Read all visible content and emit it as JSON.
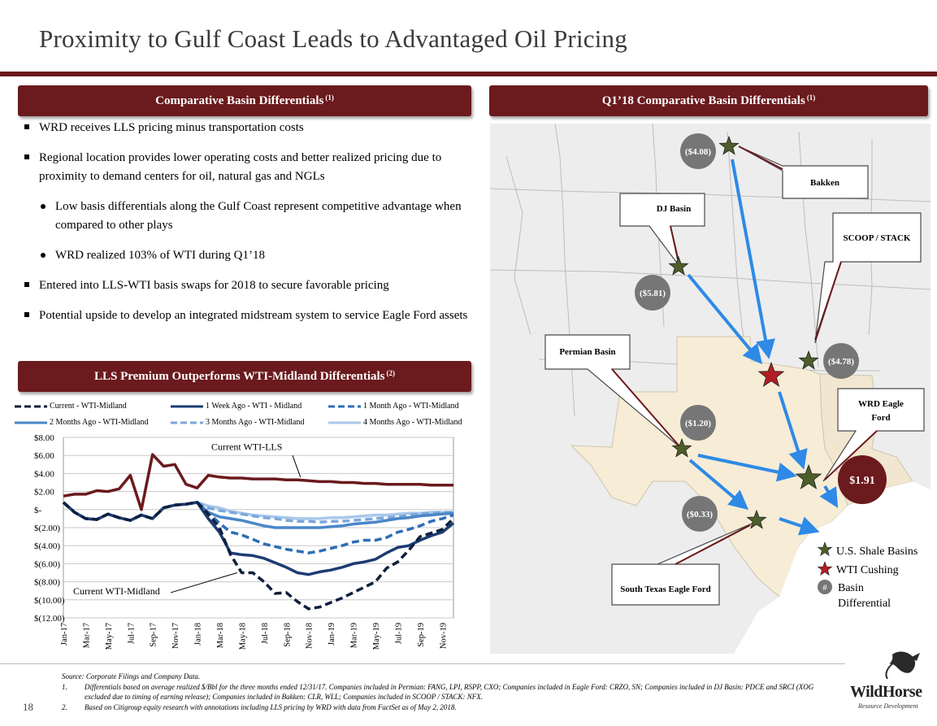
{
  "page": {
    "title": "Proximity to Gulf Coast Leads to Advantaged Oil Pricing",
    "page_number": "18"
  },
  "left_banner": {
    "label": "Comparative Basin Differentials",
    "sup": "(1)"
  },
  "right_banner": {
    "label": "Q1’18 Comparative Basin Differentials",
    "sup": "(1)"
  },
  "chart_banner": {
    "label": "LLS Premium Outperforms WTI-Midland Differentials",
    "sup": "(2)"
  },
  "bullets": [
    "WRD receives LLS pricing minus transportation costs",
    "Regional location provides lower operating costs and better realized pricing due to proximity to demand centers for oil, natural gas and NGLs",
    "Low basis differentials along the Gulf Coast represent competitive advantage when compared to other plays",
    "WRD realized 103% of WTI during Q1’18",
    "Entered into LLS-WTI basis swaps for 2018 to secure favorable pricing",
    "Potential upside to develop an integrated midstream system to service Eagle Ford assets"
  ],
  "colors": {
    "maroon": "#6b1a1d",
    "star_green": "#4d5e2a",
    "star_red": "#b01e23",
    "arrow_blue": "#2e8ae6",
    "badge_gray": "#767676"
  },
  "map": {
    "labels": {
      "bakken": "Bakken",
      "dj": "DJ Basin",
      "scoop": "SCOOP / STACK",
      "permian": "Permian Basin",
      "wrd": "WRD Eagle Ford",
      "stef": "South Texas Eagle Ford"
    },
    "badges": {
      "bakken": "($4.08)",
      "dj": "($5.81)",
      "scoop": "($4.78)",
      "permian": "($1.20)",
      "stef": "($0.33)",
      "wrd": "$1.91"
    },
    "legend": {
      "shale": "U.S. Shale Basins",
      "cushing": "WTI Cushing",
      "hash": "#",
      "diff1": "Basin",
      "diff2": "Differential"
    }
  },
  "chart_data": {
    "type": "line",
    "x": [
      "Jan-17",
      "Feb-17",
      "Mar-17",
      "Apr-17",
      "May-17",
      "Jun-17",
      "Jul-17",
      "Aug-17",
      "Sep-17",
      "Oct-17",
      "Nov-17",
      "Dec-17",
      "Jan-18",
      "Feb-18",
      "Mar-18",
      "Apr-18",
      "May-18",
      "Jun-18",
      "Jul-18",
      "Aug-18",
      "Sep-18",
      "Oct-18",
      "Nov-18",
      "Dec-18",
      "Jan-19",
      "Feb-19",
      "Mar-19",
      "Apr-19",
      "May-19",
      "Jun-19",
      "Jul-19",
      "Aug-19",
      "Sep-19",
      "Oct-19",
      "Nov-19",
      "Dec-19"
    ],
    "tick_labels": [
      "Jan-17",
      "Mar-17",
      "May-17",
      "Jul-17",
      "Sep-17",
      "Nov-17",
      "Jan-18",
      "Mar-18",
      "May-18",
      "Jul-18",
      "Sep-18",
      "Nov-18",
      "Jan-19",
      "Mar-19",
      "May-19",
      "Jul-19",
      "Sep-19",
      "Nov-19"
    ],
    "y_ticks": [
      "$8.00",
      "$6.00",
      "$4.00",
      "$2.00",
      "$-",
      "$(2.00)",
      "$(4.00)",
      "$(6.00)",
      "$(8.00)",
      "$(10.00)",
      "$(12.00)"
    ],
    "ylim": [
      -12,
      8
    ],
    "grid": true,
    "legend_position": "top",
    "series": [
      {
        "name": "Current WTI-LLS",
        "color": "#6b1a1d",
        "style": "solid",
        "width": 3.5,
        "values": [
          1.5,
          1.7,
          1.7,
          2.1,
          2.0,
          2.3,
          3.8,
          0.0,
          6.1,
          4.8,
          5.0,
          2.8,
          2.4,
          3.8,
          3.6,
          3.5,
          3.5,
          3.4,
          3.4,
          3.4,
          3.3,
          3.3,
          3.2,
          3.1,
          3.1,
          3.0,
          3.0,
          2.9,
          2.9,
          2.8,
          2.8,
          2.8,
          2.8,
          2.7,
          2.7,
          2.7
        ]
      },
      {
        "name": "4 Months Ago - WTI-Midland",
        "color": "#a9c8ea",
        "style": "solid",
        "width": 3.5,
        "values": [
          0.8,
          -0.3,
          -1.0,
          -1.1,
          -0.5,
          -0.9,
          -1.2,
          -0.6,
          -1.0,
          0.2,
          0.5,
          0.6,
          0.8,
          0.4,
          0.2,
          -0.2,
          -0.4,
          -0.6,
          -0.7,
          -0.8,
          -0.9,
          -1.0,
          -1.0,
          -1.0,
          -0.9,
          -0.9,
          -0.8,
          -0.7,
          -0.6,
          -0.6,
          -0.5,
          -0.4,
          -0.4,
          -0.3,
          -0.3,
          -0.3
        ]
      },
      {
        "name": "3 Months Ago - WTI-Midland",
        "color": "#7aa7dc",
        "style": "dashed",
        "width": 3.5,
        "values": [
          0.8,
          -0.3,
          -1.0,
          -1.1,
          -0.5,
          -0.9,
          -1.2,
          -0.6,
          -1.0,
          0.2,
          0.5,
          0.6,
          0.8,
          0.2,
          -0.1,
          -0.3,
          -0.5,
          -0.7,
          -0.9,
          -1.0,
          -1.2,
          -1.3,
          -1.3,
          -1.4,
          -1.3,
          -1.3,
          -1.2,
          -1.1,
          -1.0,
          -0.9,
          -0.8,
          -0.6,
          -0.5,
          -0.4,
          -0.3,
          -0.3
        ]
      },
      {
        "name": "2 Months Ago - WTI-Midland",
        "color": "#4a86c8",
        "style": "solid",
        "width": 3.5,
        "values": [
          0.8,
          -0.3,
          -1.0,
          -1.1,
          -0.5,
          -0.9,
          -1.2,
          -0.6,
          -1.0,
          0.2,
          0.5,
          0.6,
          0.8,
          -0.3,
          -0.8,
          -1.0,
          -1.2,
          -1.5,
          -1.8,
          -2.0,
          -2.0,
          -2.0,
          -2.0,
          -2.0,
          -1.9,
          -1.8,
          -1.6,
          -1.5,
          -1.4,
          -1.2,
          -1.0,
          -0.9,
          -0.7,
          -0.6,
          -0.5,
          -0.4
        ]
      },
      {
        "name": "1 Month Ago - WTI-Midland",
        "color": "#2f6db5",
        "style": "dashed",
        "width": 3.5,
        "values": [
          0.8,
          -0.3,
          -1.0,
          -1.1,
          -0.5,
          -0.9,
          -1.2,
          -0.6,
          -1.0,
          0.2,
          0.5,
          0.6,
          0.8,
          -0.4,
          -1.5,
          -2.5,
          -2.8,
          -3.3,
          -3.8,
          -4.1,
          -4.4,
          -4.6,
          -4.8,
          -4.6,
          -4.3,
          -4.0,
          -3.6,
          -3.4,
          -3.4,
          -3.1,
          -2.5,
          -2.2,
          -1.8,
          -1.3,
          -1.0,
          -0.6
        ]
      },
      {
        "name": "1 Week Ago - WTI - Midland",
        "color": "#1c3c72",
        "style": "solid",
        "width": 3.5,
        "values": [
          0.8,
          -0.3,
          -1.0,
          -1.1,
          -0.5,
          -0.9,
          -1.2,
          -0.6,
          -1.0,
          0.2,
          0.5,
          0.6,
          0.8,
          -1.0,
          -2.5,
          -4.8,
          -5.0,
          -5.1,
          -5.4,
          -5.9,
          -6.4,
          -7.0,
          -7.2,
          -6.9,
          -6.7,
          -6.4,
          -6.0,
          -5.8,
          -5.5,
          -4.8,
          -4.2,
          -4.0,
          -3.4,
          -2.9,
          -2.5,
          -1.5
        ]
      },
      {
        "name": "Current - WTI-Midland",
        "color": "#0f1f3d",
        "style": "dashed",
        "width": 3.5,
        "values": [
          0.8,
          -0.3,
          -1.0,
          -1.1,
          -0.5,
          -0.9,
          -1.2,
          -0.6,
          -1.0,
          0.2,
          0.5,
          0.6,
          0.8,
          -0.5,
          -2.0,
          -5.0,
          -7.0,
          -7.0,
          -8.0,
          -9.3,
          -9.2,
          -10.2,
          -11.0,
          -10.8,
          -10.3,
          -9.8,
          -9.2,
          -8.6,
          -8.0,
          -6.5,
          -5.8,
          -4.5,
          -3.0,
          -2.6,
          -2.2,
          -1.0
        ]
      }
    ],
    "annotations": [
      {
        "text": "Current WTI-LLS"
      },
      {
        "text": "Current WTI-Midland"
      }
    ]
  },
  "legend_rows": [
    [
      "Current - WTI-Midland",
      "1 Week Ago - WTI - Midland",
      "1 Month Ago - WTI-Midland"
    ],
    [
      "2 Months Ago - WTI-Midland",
      "3 Months Ago - WTI-Midland",
      "4 Months Ago - WTI-Midland"
    ]
  ],
  "footnotes": {
    "source": "Source: Corporate Filings and Company Data.",
    "n1_num": "1.",
    "n1": "Differentials based on average realized $/Bbl for the three months ended 12/31/17. Companies included in Permian: FANG, LPI, RSPP, CXO; Companies included in Eagle Ford: CRZO, SN; Companies included in DJ Basin: PDCE and SRCI (XOG excluded due to timing of earning release); Companies included in Bakken: CLR, WLL; Companies included in SCOOP / STACK: NFX.",
    "n2_num": "2.",
    "n2": "Based on Citigroup equity research with annotations including LLS pricing by WRD with data from FactSet as of May 2, 2018."
  },
  "logo": {
    "name": "WildHorse",
    "sub": "Resource Development"
  }
}
